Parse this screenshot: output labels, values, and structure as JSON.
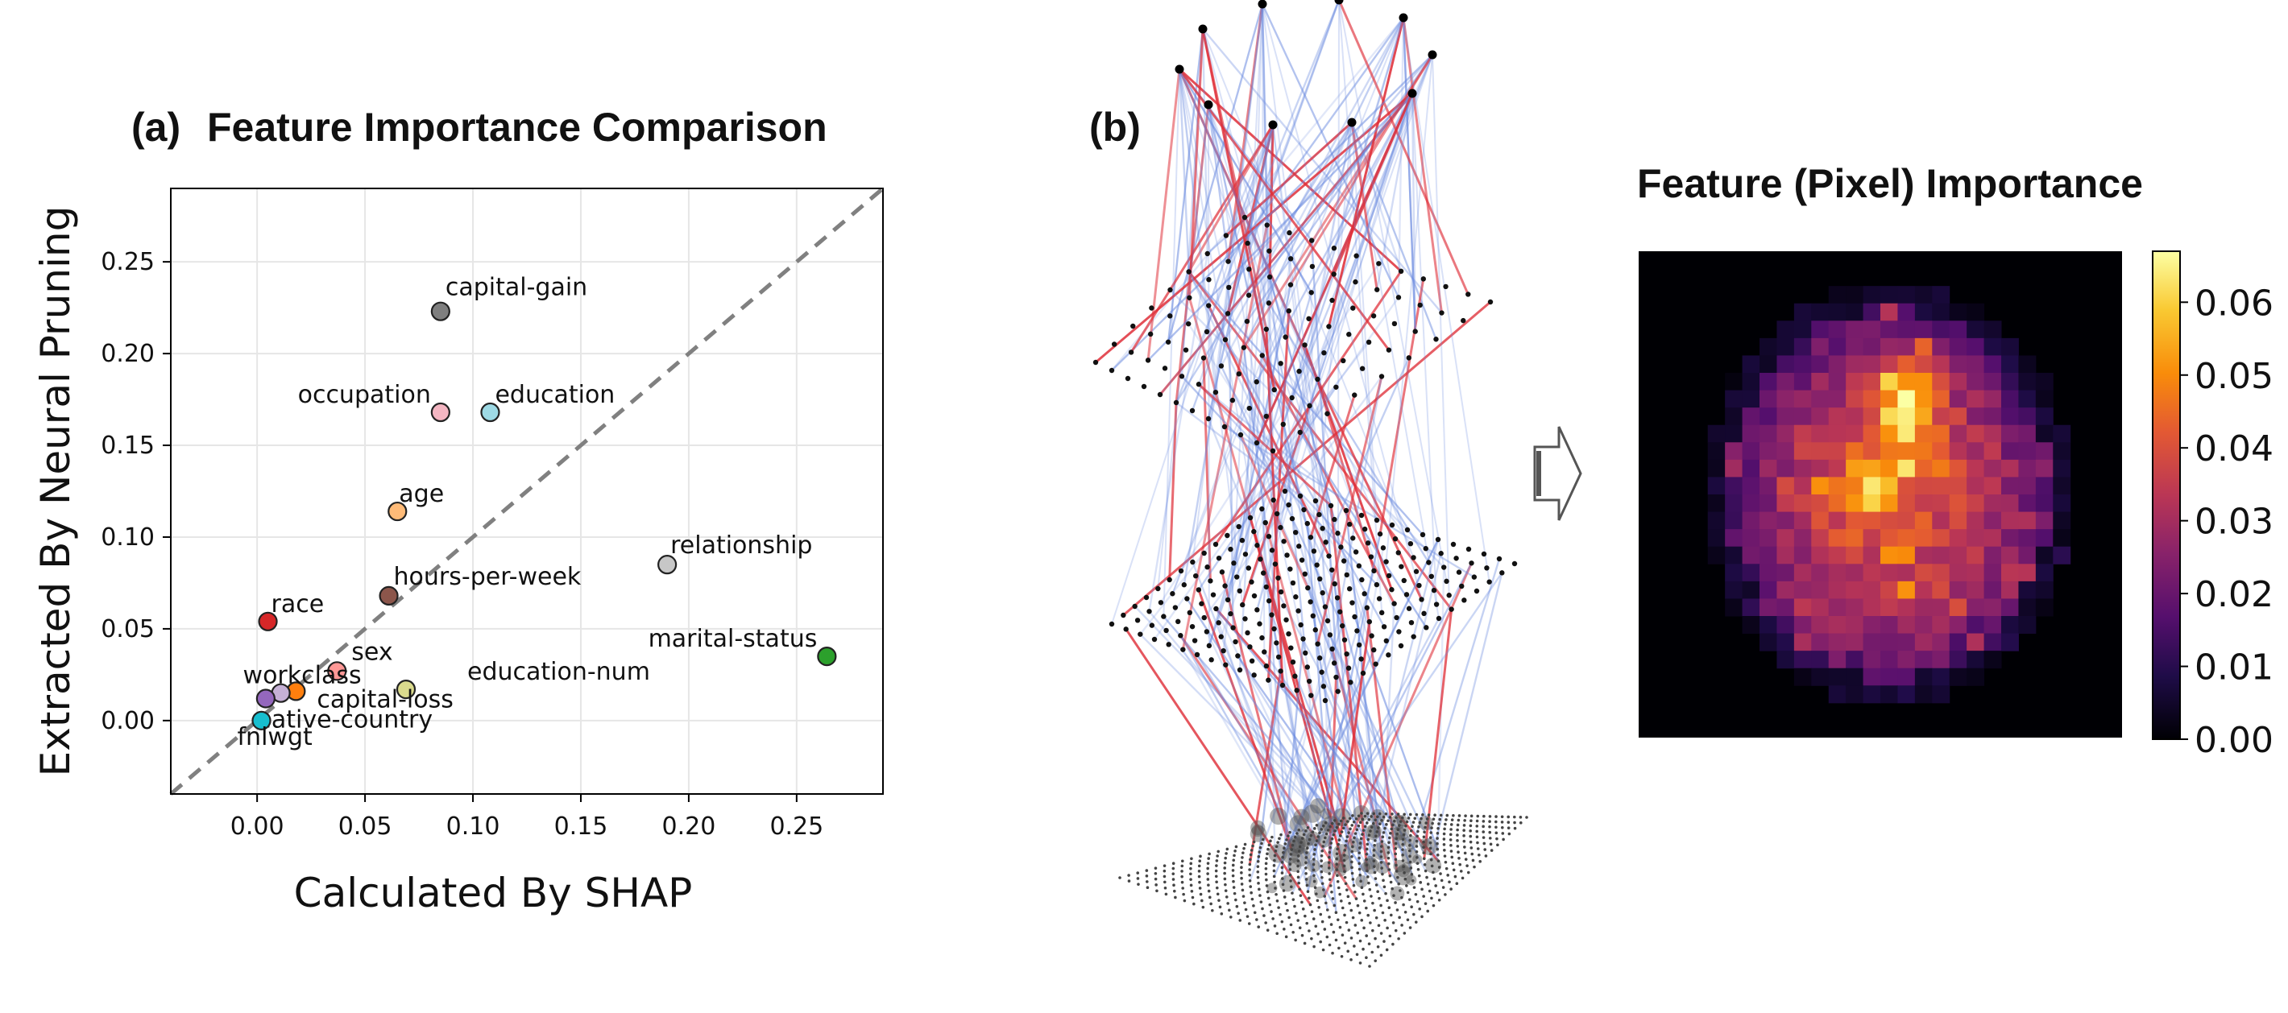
{
  "chart_data": [
    {
      "type": "scatter",
      "panel": "(a)",
      "title": "Feature Importance Comparison",
      "xlabel": "Calculated By SHAP",
      "ylabel": "Extracted By Neural Pruning",
      "xlim": [
        -0.04,
        0.29
      ],
      "ylim": [
        -0.04,
        0.29
      ],
      "xticks": [
        0.0,
        0.05,
        0.1,
        0.15,
        0.2,
        0.25
      ],
      "xtick_labels": [
        "0.00",
        "0.05",
        "0.10",
        "0.15",
        "0.20",
        "0.25"
      ],
      "yticks": [
        0.0,
        0.05,
        0.1,
        0.15,
        0.2,
        0.25
      ],
      "ytick_labels": [
        "0.00",
        "0.05",
        "0.10",
        "0.15",
        "0.20",
        "0.25"
      ],
      "grid": true,
      "reference_line": "y = x (dashed)",
      "points": [
        {
          "label": "capital-gain",
          "x": 0.085,
          "y": 0.223,
          "color": "#7f7f7f",
          "anchor": "start"
        },
        {
          "label": "occupation",
          "x": 0.085,
          "y": 0.168,
          "color": "#f4b6c2",
          "anchor": "end"
        },
        {
          "label": "education",
          "x": 0.108,
          "y": 0.168,
          "color": "#9edae5",
          "anchor": "start"
        },
        {
          "label": "age",
          "x": 0.065,
          "y": 0.114,
          "color": "#ffbb78",
          "anchor": "start"
        },
        {
          "label": "relationship",
          "x": 0.19,
          "y": 0.085,
          "color": "#c7c7c7",
          "anchor": "start"
        },
        {
          "label": "hours-per-week",
          "x": 0.061,
          "y": 0.068,
          "color": "#8c564b",
          "anchor": "start"
        },
        {
          "label": "race",
          "x": 0.005,
          "y": 0.054,
          "color": "#d62728",
          "anchor": "start"
        },
        {
          "label": "marital-status",
          "x": 0.264,
          "y": 0.035,
          "color": "#2ca02c",
          "anchor": "end"
        },
        {
          "label": "sex",
          "x": 0.037,
          "y": 0.027,
          "color": "#ff9896",
          "anchor": "start"
        },
        {
          "label": "education-num",
          "x": 0.069,
          "y": 0.017,
          "color": "#dbdb8d",
          "anchor": "start"
        },
        {
          "label": "capital-loss",
          "x": 0.018,
          "y": 0.016,
          "color": "#ff7f0e",
          "anchor": "start"
        },
        {
          "label": "workclass",
          "x": 0.011,
          "y": 0.015,
          "color": "#c5b0d5",
          "anchor": "end"
        },
        {
          "label": "native-country",
          "x": 0.004,
          "y": 0.012,
          "color": "#9467bd",
          "anchor": "start"
        },
        {
          "label": "fnlwgt",
          "x": 0.002,
          "y": 0.0,
          "color": "#17becf",
          "anchor": "start"
        }
      ]
    },
    {
      "type": "diagram",
      "panel": "(b)",
      "description_text": "",
      "layers": 4
    },
    {
      "type": "heatmap",
      "title": "Feature (Pixel) Importance",
      "colormap": "inferno",
      "vmin": 0.0,
      "vmax": 0.067,
      "colorbar_ticks": [
        0.0,
        0.01,
        0.02,
        0.03,
        0.04,
        0.05,
        0.06
      ],
      "colorbar_tick_labels": [
        "0.00",
        "0.01",
        "0.02",
        "0.03",
        "0.04",
        "0.05",
        "0.06"
      ],
      "grid_size": 28
    }
  ],
  "colors": {
    "axis": "#000000",
    "grid": "#e6e6e6",
    "refline": "#808080",
    "net_blue": "#6b8be0",
    "net_red": "#e0303a"
  }
}
